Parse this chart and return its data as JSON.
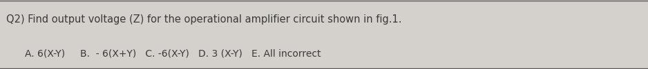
{
  "question": "Q2) Find output voltage (Z) for the operational amplifier circuit shown in fig.1.",
  "options": "A. 6(X-Y)     B.  - 6(X+Y)   C. -6(X-Y)   D. 3 (X-Y)   E. All incorrect",
  "bg_color": "#d4d0cc",
  "border_color": "#5a5a5a",
  "text_color": "#3a3a3a",
  "question_fontsize": 10.5,
  "options_fontsize": 10.0,
  "fig_width": 9.38,
  "fig_height": 1.01,
  "dpi": 100
}
